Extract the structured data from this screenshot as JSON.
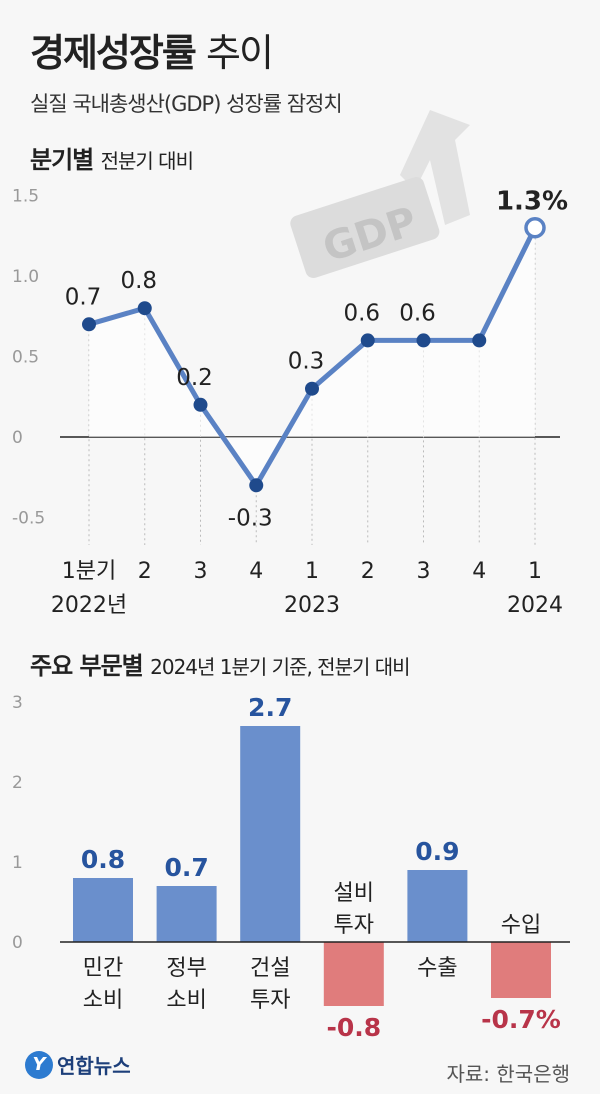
{
  "header": {
    "title_bold": "경제성장률",
    "title_light": "추이",
    "subtitle": "실질 국내총생산(GDP) 성장률 잠정치"
  },
  "colors": {
    "line": "#5a82c4",
    "bar_positive": "#6a8fcc",
    "bar_negative": "#e07c7c",
    "label_positive": "#27549e",
    "label_negative": "#b83449"
  },
  "chart_data": [
    {
      "type": "line",
      "section_title": "분기별",
      "section_subtitle": "전분기 대비",
      "x_labels": [
        "1분기",
        "2",
        "3",
        "4",
        "1",
        "2",
        "3",
        "4",
        "1"
      ],
      "year_labels": [
        "2022년",
        "",
        "",
        "",
        "2023",
        "",
        "",
        "",
        "2024"
      ],
      "values": [
        0.7,
        0.8,
        0.2,
        -0.3,
        0.3,
        0.6,
        0.6,
        0.6,
        1.3
      ],
      "data_labels": [
        "0.7",
        "0.8",
        "0.2",
        "-0.3",
        "0.3",
        "0.6",
        "0.6",
        "",
        "1.3%"
      ],
      "y_ticks": [
        "1.5",
        "1.0",
        "0.5",
        "0",
        "-0.5"
      ],
      "ylim": [
        -0.5,
        1.5
      ],
      "decoration_text": "GDP"
    },
    {
      "type": "bar",
      "section_title": "주요 부문별",
      "section_subtitle": "2024년 1분기 기준, 전분기 대비",
      "categories": [
        [
          "민간",
          "소비"
        ],
        [
          "정부",
          "소비"
        ],
        [
          "건설",
          "투자"
        ],
        [
          "설비",
          "투자"
        ],
        [
          "수출"
        ],
        [
          "수입"
        ]
      ],
      "values": [
        0.8,
        0.7,
        2.7,
        -0.8,
        0.9,
        -0.7
      ],
      "data_labels": [
        "0.8",
        "0.7",
        "2.7",
        "-0.8",
        "0.9",
        "-0.7%"
      ],
      "y_ticks": [
        "3",
        "2",
        "1",
        "0"
      ],
      "ylim": [
        0,
        3
      ]
    }
  ],
  "footer": {
    "logo_text": "연합뉴스",
    "logo_mark": "Y",
    "source": "자료: 한국은행"
  }
}
